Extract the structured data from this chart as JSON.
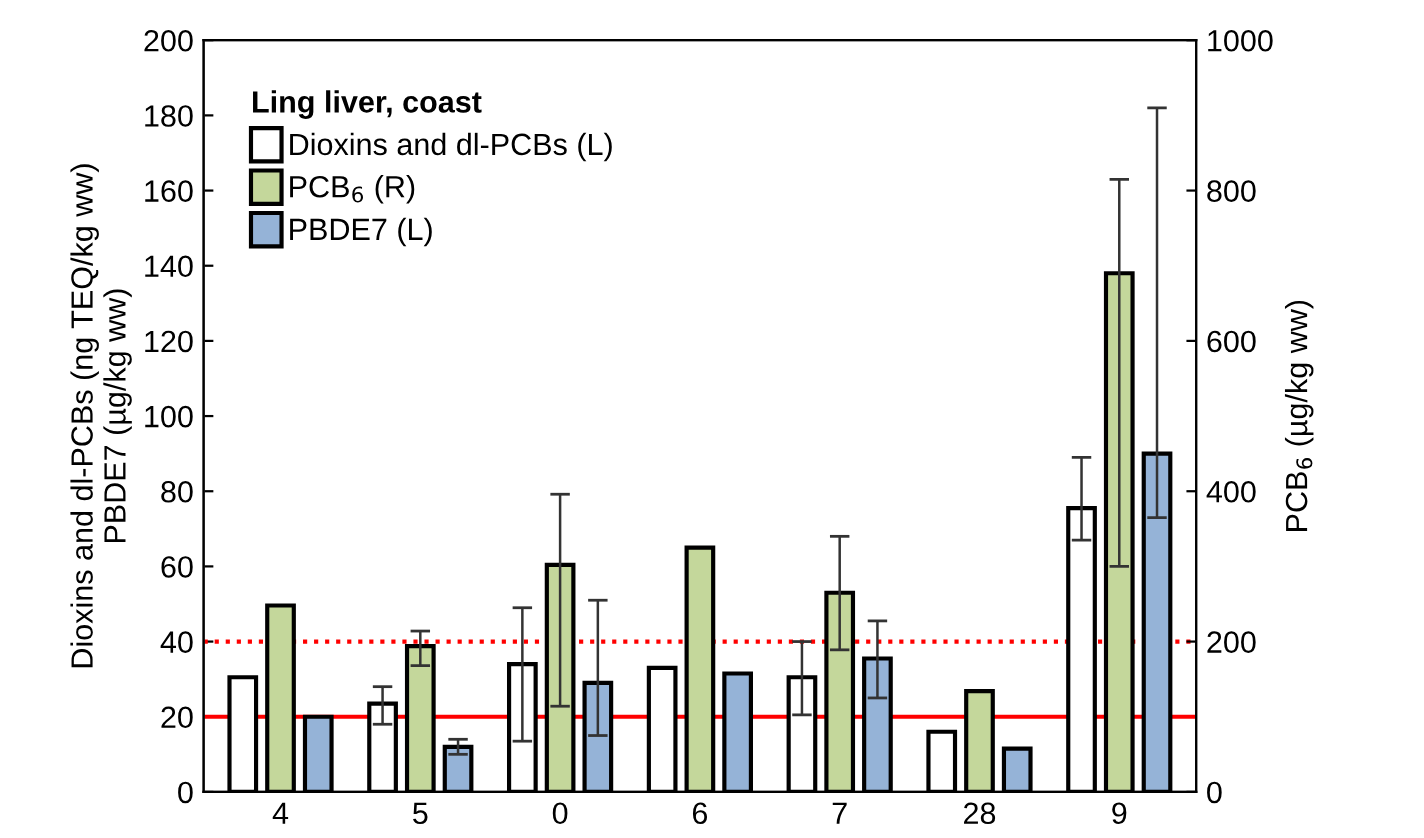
{
  "chart_data": {
    "type": "bar",
    "categories": [
      "4",
      "5",
      "0",
      "6",
      "7",
      "28",
      "9"
    ],
    "ylabel": "Dioxins and dl-PCBs (ng TEQ/kg ww)\nPBDE7 (µg/kg ww)",
    "y2label": "PCB$_{6}$ (µg/kg ww)",
    "legend_title": "Ling liver, coast",
    "legend": "top left",
    "grid": false,
    "ylim": [
      0,
      200
    ],
    "yticks": [
      0,
      20,
      40,
      60,
      80,
      100,
      120,
      140,
      160,
      180,
      200
    ],
    "y2lim": [
      0,
      1000
    ],
    "y2ticks": [
      0,
      200,
      400,
      600,
      800,
      1000
    ],
    "series": [
      {
        "name": "Dioxins and dl-PCBs (L)",
        "color": "#ffffff",
        "axis": "y",
        "values": [
          30.5,
          23.5,
          34,
          33,
          30.5,
          16,
          75.5
        ],
        "errors": [
          null,
          [
            18,
            28
          ],
          [
            13.5,
            49
          ],
          null,
          [
            20.5,
            40
          ],
          null,
          [
            67,
            89
          ]
        ]
      },
      {
        "name": "PCB$_{6}$ (R)",
        "color": "#c4d79b",
        "axis": "y2",
        "values": [
          248,
          194,
          302,
          325,
          265,
          134,
          690
        ],
        "errors": [
          null,
          [
            168,
            214
          ],
          [
            114,
            396
          ],
          null,
          [
            189,
            340
          ],
          null,
          [
            300,
            815
          ]
        ]
      },
      {
        "name": "PBDE7 (L)",
        "color": "#95b3d7",
        "axis": "y",
        "values": [
          20,
          12,
          29,
          31.5,
          35.5,
          11.5,
          90
        ],
        "errors": [
          null,
          [
            10,
            14
          ],
          [
            15,
            51
          ],
          null,
          [
            25,
            45.5
          ],
          null,
          [
            73,
            182
          ]
        ]
      }
    ],
    "ref_lines": [
      {
        "axis": "y",
        "value": 20,
        "color": "#ff0000",
        "line_style": "solid"
      },
      {
        "axis": "y",
        "value": 40,
        "color": "#ff0000",
        "line_style": "dotted"
      }
    ]
  }
}
